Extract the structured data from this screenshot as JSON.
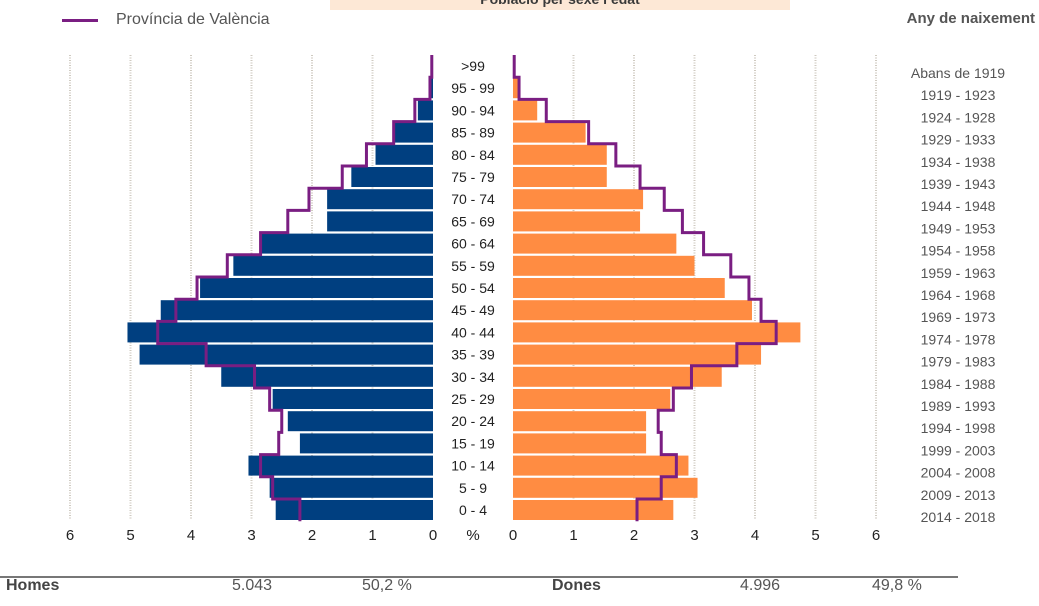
{
  "title": "Població per sexe i edat",
  "legend": {
    "label": "Província de València",
    "color": "#7a1e82"
  },
  "birth_header": "Any de naixement",
  "footer": {
    "men_label": "Homes",
    "men_count": "5.043",
    "men_pct": "50,2 %",
    "women_label": "Dones",
    "women_count": "4.996",
    "women_pct": "49,8 %"
  },
  "colors": {
    "men": "#003f80",
    "women": "#ff8c42",
    "province": "#7a1e82",
    "grid": "#cfcac0"
  },
  "chart_data": {
    "type": "bar",
    "orientation": "horizontal-population-pyramid",
    "title": "Població per sexe i edat",
    "xlabel": "%",
    "xlim": [
      0,
      6
    ],
    "x_ticks_left": [
      "6",
      "5",
      "4",
      "3",
      "2",
      "1",
      "0"
    ],
    "x_ticks_right": [
      "0",
      "1",
      "2",
      "3",
      "4",
      "5",
      "6"
    ],
    "categories": [
      "0 - 4",
      "5 - 9",
      "10 - 14",
      "15 - 19",
      "20 - 24",
      "25 - 29",
      "30 - 34",
      "35 - 39",
      "40 - 44",
      "45 - 49",
      "50 - 54",
      "55 - 59",
      "60 - 64",
      "65 - 69",
      "70 - 74",
      "75 - 79",
      "80 - 84",
      "85 - 89",
      "90 - 94",
      "95 - 99",
      ">99"
    ],
    "birth_years": [
      "2014 - 2018",
      "2009 - 2013",
      "2004 - 2008",
      "1999 - 2003",
      "1994 - 1998",
      "1989 - 1993",
      "1984 - 1988",
      "1979 - 1983",
      "1974 - 1978",
      "1969 - 1973",
      "1964 - 1968",
      "1959 - 1963",
      "1954 - 1958",
      "1949 - 1953",
      "1944 - 1948",
      "1939 - 1943",
      "1934 - 1938",
      "1929 - 1933",
      "1924 - 1928",
      "1919 - 1923",
      "Abans de 1919"
    ],
    "series": [
      {
        "name": "Homes",
        "values": [
          2.6,
          2.7,
          3.05,
          2.2,
          2.4,
          2.65,
          3.5,
          4.85,
          5.05,
          4.5,
          3.85,
          3.3,
          2.85,
          1.75,
          1.75,
          1.35,
          0.95,
          0.65,
          0.25,
          0.05,
          0.02
        ]
      },
      {
        "name": "Dones",
        "values": [
          2.65,
          3.05,
          2.9,
          2.2,
          2.2,
          2.6,
          3.45,
          4.1,
          4.75,
          3.95,
          3.5,
          3.0,
          2.7,
          2.1,
          2.15,
          1.55,
          1.55,
          1.2,
          0.4,
          0.1,
          0.02
        ]
      },
      {
        "name": "Província de València",
        "side": "Homes",
        "values": [
          2.2,
          2.65,
          2.85,
          2.55,
          2.5,
          2.7,
          2.95,
          3.75,
          4.55,
          4.25,
          3.9,
          3.4,
          2.85,
          2.4,
          2.05,
          1.5,
          1.1,
          0.65,
          0.3,
          0.05,
          0.02
        ]
      },
      {
        "name": "Província de València",
        "side": "Dones",
        "values": [
          2.05,
          2.45,
          2.7,
          2.45,
          2.4,
          2.65,
          2.95,
          3.7,
          4.35,
          4.1,
          3.9,
          3.6,
          3.15,
          2.8,
          2.5,
          2.1,
          1.7,
          1.25,
          0.55,
          0.1,
          0.02
        ]
      }
    ]
  }
}
